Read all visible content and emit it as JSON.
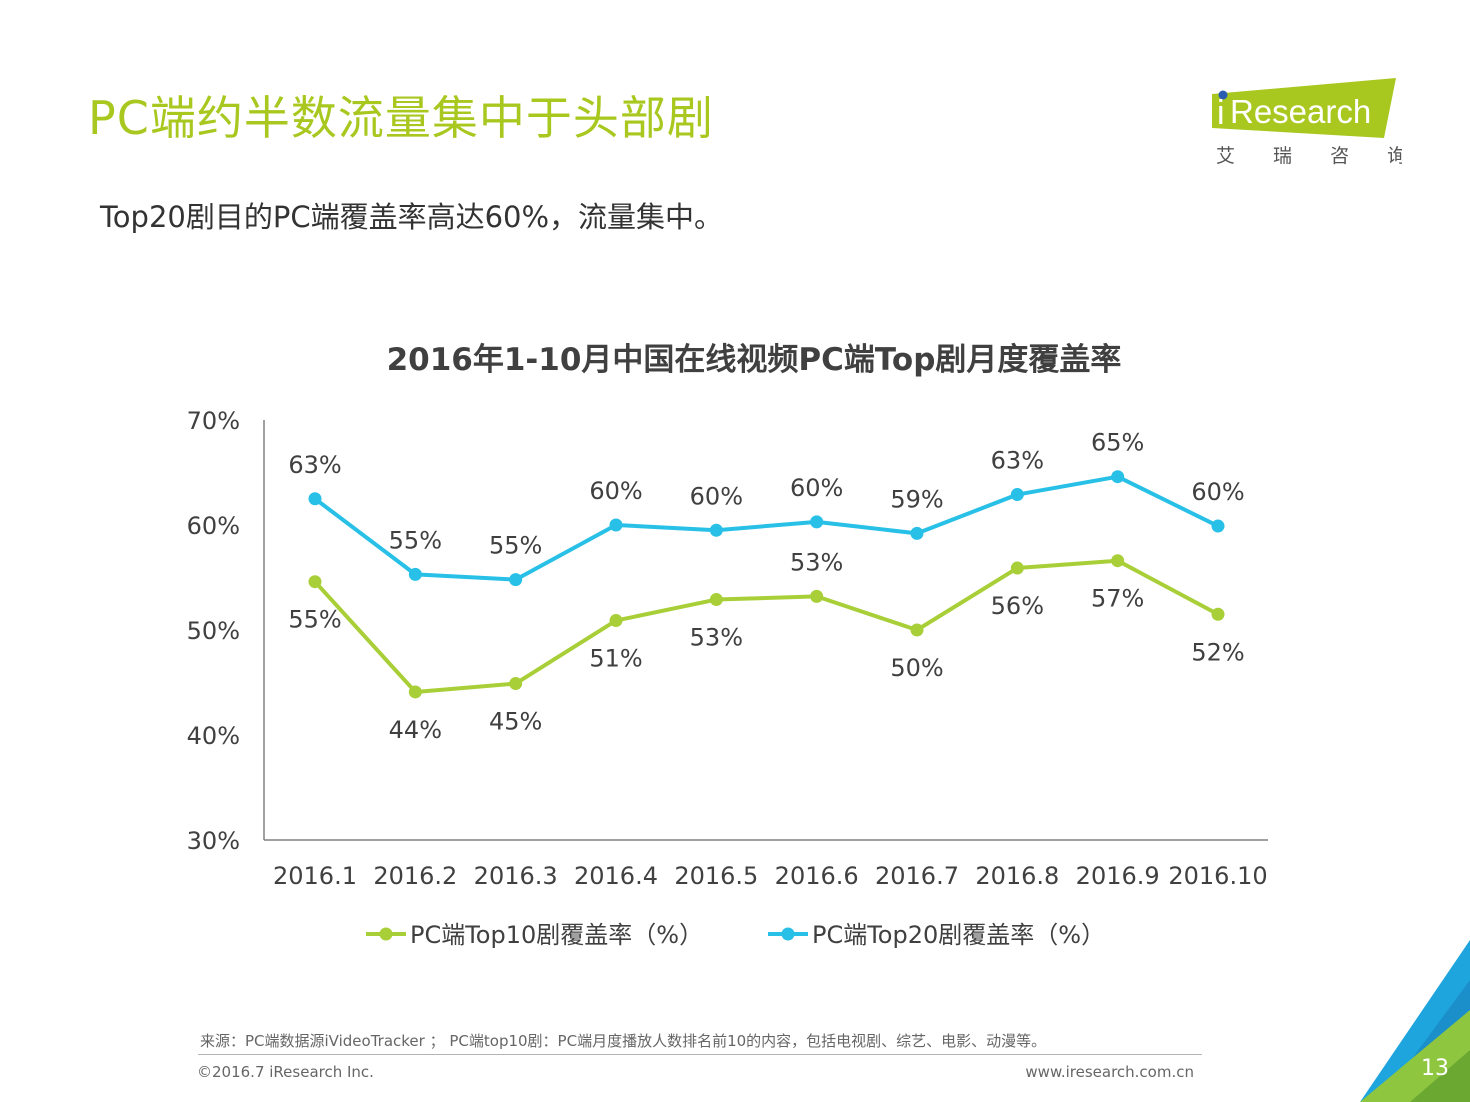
{
  "page": {
    "title": "PC端约半数流量集中于头部剧",
    "subtitle": "Top20剧目的PC端覆盖率高达60%，流量集中。",
    "page_number": "13"
  },
  "logo": {
    "brand_text": "Research",
    "brand_prefix": "i",
    "tagline": "艾 瑞 咨 询"
  },
  "footer": {
    "source": "来源：PC端数据源iVideoTracker  ；  PC端top10剧：PC端月度播放人数排名前10的内容，包括电视剧、综艺、电影、动漫等。",
    "copyright": "©2016.7 iResearch Inc.",
    "url": "www.iresearch.com.cn"
  },
  "colors": {
    "accent_green": "#a8c820",
    "series_green": "#a9cf38",
    "series_blue": "#28c0e6",
    "text_dark": "#404040"
  },
  "chart_data": {
    "type": "line",
    "title": "2016年1-10月中国在线视频PC端Top剧月度覆盖率",
    "categories": [
      "2016.1",
      "2016.2",
      "2016.3",
      "2016.4",
      "2016.5",
      "2016.6",
      "2016.7",
      "2016.8",
      "2016.9",
      "2016.10"
    ],
    "ylim": [
      30,
      70
    ],
    "yticks": [
      30,
      40,
      50,
      60,
      70
    ],
    "ytick_labels": [
      "30%",
      "40%",
      "50%",
      "60%",
      "70%"
    ],
    "legend_position": "bottom",
    "series": [
      {
        "name": "PC端Top10剧覆盖率（%）",
        "color": "#a9cf38",
        "values": [
          54.6,
          44.1,
          44.9,
          50.9,
          52.9,
          53.2,
          50.0,
          55.9,
          56.6,
          51.5
        ],
        "labels": [
          "55%",
          "44%",
          "45%",
          "51%",
          "53%",
          "53%",
          "50%",
          "56%",
          "57%",
          "52%"
        ],
        "label_pos": [
          "below",
          "below",
          "below",
          "below",
          "below",
          "above",
          "below",
          "below",
          "below",
          "below"
        ]
      },
      {
        "name": "PC端Top20剧覆盖率（%）",
        "color": "#28c0e6",
        "values": [
          62.5,
          55.3,
          54.8,
          60.0,
          59.5,
          60.3,
          59.2,
          62.9,
          64.6,
          59.9
        ],
        "labels": [
          "63%",
          "55%",
          "55%",
          "60%",
          "60%",
          "60%",
          "59%",
          "63%",
          "65%",
          "60%"
        ],
        "label_pos": [
          "above",
          "above",
          "above",
          "above",
          "above",
          "above",
          "above",
          "above",
          "above",
          "above"
        ]
      }
    ]
  }
}
